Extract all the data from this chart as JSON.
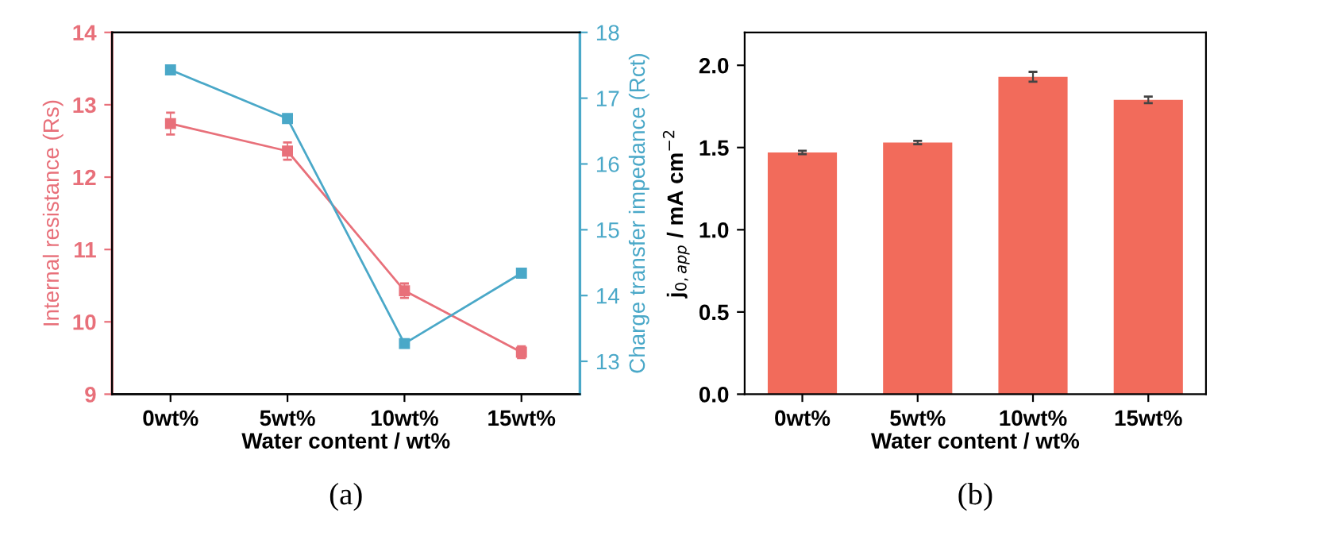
{
  "chart_data": [
    {
      "type": "line",
      "categories": [
        "0wt%",
        "5wt%",
        "10wt%",
        "15wt%"
      ],
      "xlabel": "Water content / wt%",
      "ylabel": "Internal resistance (Rs)",
      "y2label": "Charge transfer impedance (Rct)",
      "ylim": [
        9,
        14
      ],
      "yticks": [
        9,
        10,
        11,
        12,
        13,
        14
      ],
      "y2lim": [
        12.5,
        18
      ],
      "y2ticks": [
        13,
        14,
        15,
        16,
        17,
        18
      ],
      "marker": "square",
      "grid": false,
      "annotations": [
        "(a)"
      ],
      "series": [
        {
          "color": "#e8707a",
          "values": [
            12.74,
            12.36,
            10.43,
            9.58
          ],
          "errors": [
            0.15,
            0.12,
            0.1,
            0.08
          ]
        },
        {
          "color": "#4aa8c8",
          "axis": "y2",
          "values": [
            17.43,
            16.69,
            13.27,
            14.34
          ],
          "errors": [
            0.05,
            0.06,
            0.04,
            0.04
          ]
        }
      ]
    },
    {
      "type": "bar",
      "categories": [
        "0wt%",
        "5wt%",
        "10wt%",
        "15wt%"
      ],
      "xlabel": "Water content / wt%",
      "ylabel": "j$_{0,app}$ / mA cm$^{−2}$",
      "ylim": [
        0,
        2.2
      ],
      "yticks": [
        {
          "value": 0,
          "label": "0.0"
        },
        {
          "value": 0.5,
          "label": "0.5"
        },
        {
          "value": 1,
          "label": "1.0"
        },
        {
          "value": 1.5,
          "label": "1.5"
        },
        {
          "value": 2,
          "label": "2.0"
        }
      ],
      "grid": false,
      "annotations": [
        "(b)"
      ],
      "series": [
        {
          "color": "#f26b5b",
          "values": [
            1.47,
            1.53,
            1.93,
            1.79
          ],
          "errors": [
            0.01,
            0.01,
            0.03,
            0.02
          ]
        }
      ]
    }
  ]
}
